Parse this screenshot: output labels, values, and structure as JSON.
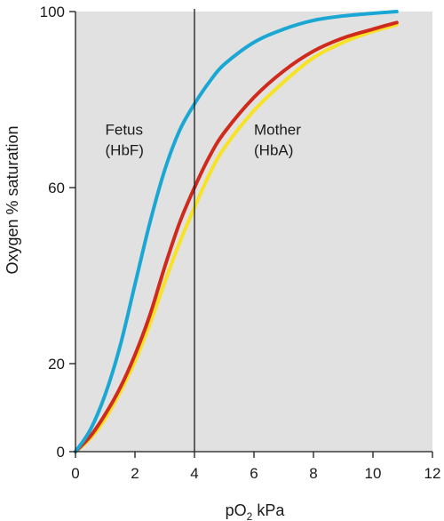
{
  "chart_data": {
    "type": "line",
    "title": "",
    "xlabel_main": "pO",
    "xlabel_sub": "2",
    "xlabel_unit": " kPa",
    "ylabel": "Oxygen % saturation",
    "xlim": [
      0,
      12
    ],
    "ylim": [
      0,
      100
    ],
    "x_ticks": [
      "0",
      "2",
      "4",
      "6",
      "8",
      "10",
      "12"
    ],
    "y_ticks": [
      "0",
      "20",
      "60",
      "100"
    ],
    "x_tick_values": [
      0,
      2,
      4,
      6,
      8,
      10,
      12
    ],
    "y_tick_values": [
      0,
      20,
      60,
      100
    ],
    "background_color": "#e1e1e1",
    "grid": false,
    "reference_line": {
      "x": 4
    },
    "annotations": [
      {
        "line1": "Fetus",
        "line2": "(HbF)",
        "x": 1.0,
        "y": 72
      },
      {
        "line1": "Mother",
        "line2": "(HbA)",
        "x": 6.0,
        "y": 72
      }
    ],
    "series": [
      {
        "color": "#1ba7d4",
        "x": [
          0,
          0.5,
          1.0,
          1.5,
          2.0,
          2.5,
          3.0,
          3.5,
          4.0,
          4.5,
          5.0,
          6.0,
          7.0,
          8.0,
          9.0,
          10.0,
          10.8
        ],
        "y": [
          0,
          5,
          13,
          24,
          38,
          52,
          64,
          73,
          79,
          84,
          88,
          93,
          96,
          98,
          99,
          99.6,
          100
        ]
      },
      {
        "color": "#cf2a1c",
        "x": [
          0,
          0.5,
          1.0,
          1.5,
          2.0,
          2.5,
          3.0,
          3.5,
          4.0,
          4.5,
          5.0,
          6.0,
          7.0,
          8.0,
          9.0,
          10.0,
          10.8
        ],
        "y": [
          0,
          3.5,
          8.5,
          14.5,
          22,
          31,
          42,
          52,
          60,
          67,
          72.5,
          80.5,
          86.5,
          91,
          94,
          96,
          97.5
        ]
      },
      {
        "color": "#f7e223",
        "x": [
          0,
          0.5,
          1.0,
          1.5,
          2.0,
          2.5,
          3.0,
          3.5,
          4.0,
          4.5,
          5.0,
          6.0,
          7.0,
          8.0,
          9.0,
          10.0,
          10.8
        ],
        "y": [
          0,
          3,
          7.5,
          13.5,
          20.5,
          29,
          38.5,
          47.5,
          55.5,
          63,
          69,
          77.5,
          84,
          89.5,
          93,
          95.5,
          97
        ]
      }
    ]
  }
}
